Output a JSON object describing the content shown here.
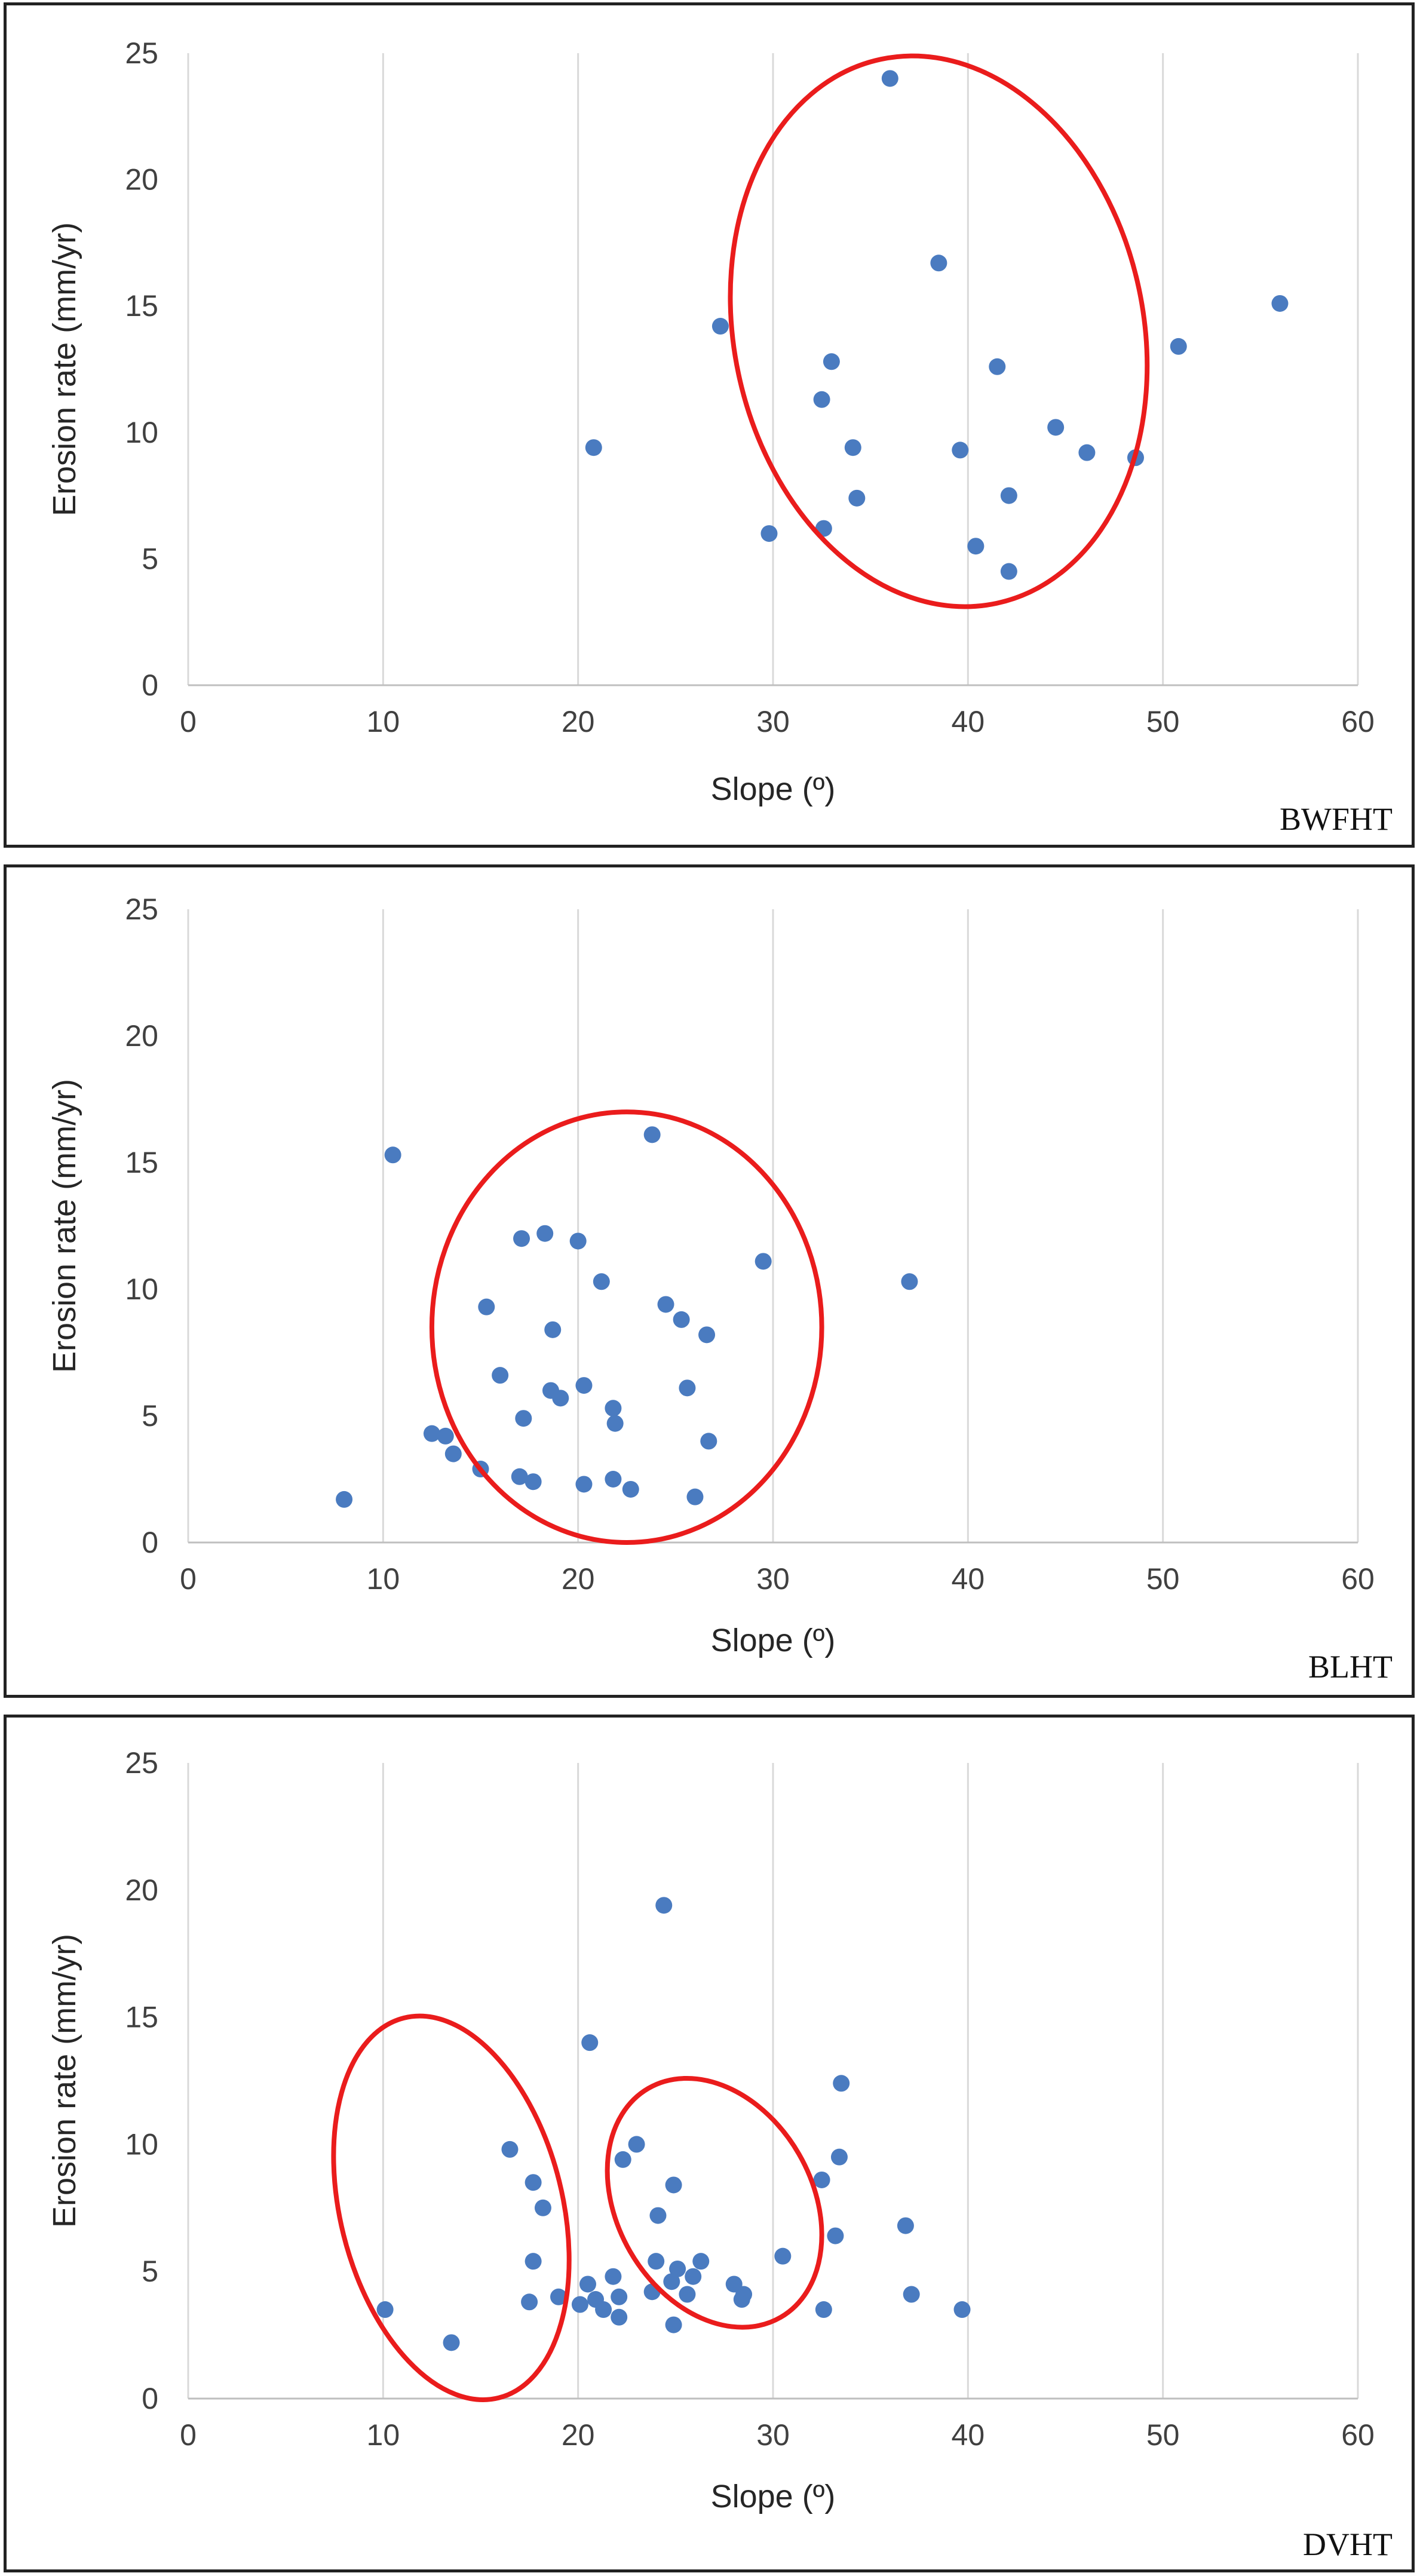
{
  "colors": {
    "marker": "#4a7bc0",
    "ellipse": "#ea1c1c",
    "grid": "#d9d9d9",
    "text": "#404040"
  },
  "chart_data": [
    {
      "type": "scatter",
      "panel_label": "BWFHT",
      "xlabel": "Slope (º)",
      "ylabel": "Erosion rate (mm/yr)",
      "xlim": [
        0,
        60
      ],
      "ylim": [
        0,
        25
      ],
      "xticks": [
        "0",
        "10",
        "20",
        "30",
        "40",
        "50",
        "60"
      ],
      "yticks": [
        "0",
        "5",
        "10",
        "15",
        "20",
        "25"
      ],
      "grid": "vertical",
      "points": [
        [
          20.8,
          9.4
        ],
        [
          27.3,
          14.2
        ],
        [
          29.8,
          6.0
        ],
        [
          32.5,
          11.3
        ],
        [
          32.6,
          6.2
        ],
        [
          33.0,
          12.8
        ],
        [
          34.1,
          9.4
        ],
        [
          34.3,
          7.4
        ],
        [
          36.0,
          24.0
        ],
        [
          38.5,
          16.7
        ],
        [
          39.6,
          9.3
        ],
        [
          40.4,
          5.5
        ],
        [
          41.5,
          12.6
        ],
        [
          42.1,
          7.5
        ],
        [
          42.1,
          4.5
        ],
        [
          44.5,
          10.2
        ],
        [
          46.1,
          9.2
        ],
        [
          48.6,
          9.0
        ],
        [
          50.8,
          13.4
        ],
        [
          56.0,
          15.1
        ]
      ],
      "ellipses": [
        {
          "cx": 38.5,
          "cy": 14.0,
          "rx": 10.5,
          "ry": 11.0,
          "rotate": -12
        }
      ]
    },
    {
      "type": "scatter",
      "panel_label": "BLHT",
      "xlabel": "Slope (º)",
      "ylabel": "Erosion rate (mm/yr)",
      "xlim": [
        0,
        60
      ],
      "ylim": [
        0,
        25
      ],
      "xticks": [
        "0",
        "10",
        "20",
        "30",
        "40",
        "50",
        "60"
      ],
      "yticks": [
        "0",
        "5",
        "10",
        "15",
        "20",
        "25"
      ],
      "grid": "vertical",
      "points": [
        [
          8.0,
          1.7
        ],
        [
          10.5,
          15.3
        ],
        [
          12.5,
          4.3
        ],
        [
          13.2,
          4.2
        ],
        [
          13.6,
          3.5
        ],
        [
          15.0,
          2.9
        ],
        [
          15.3,
          9.3
        ],
        [
          16.0,
          6.6
        ],
        [
          17.0,
          2.6
        ],
        [
          17.1,
          12.0
        ],
        [
          17.2,
          4.9
        ],
        [
          17.7,
          2.4
        ],
        [
          18.3,
          12.2
        ],
        [
          18.6,
          6.0
        ],
        [
          18.7,
          8.4
        ],
        [
          19.1,
          5.7
        ],
        [
          20.0,
          11.9
        ],
        [
          20.3,
          6.2
        ],
        [
          20.3,
          2.3
        ],
        [
          21.2,
          10.3
        ],
        [
          21.8,
          5.3
        ],
        [
          21.8,
          2.5
        ],
        [
          21.9,
          4.7
        ],
        [
          22.7,
          2.1
        ],
        [
          23.8,
          16.1
        ],
        [
          24.5,
          9.4
        ],
        [
          25.3,
          8.8
        ],
        [
          25.6,
          6.1
        ],
        [
          26.0,
          1.8
        ],
        [
          26.6,
          8.2
        ],
        [
          26.7,
          4.0
        ],
        [
          29.5,
          11.1
        ],
        [
          37.0,
          10.3
        ]
      ],
      "ellipses": [
        {
          "cx": 22.5,
          "cy": 8.5,
          "rx": 10.0,
          "ry": 8.5,
          "rotate": 0
        }
      ]
    },
    {
      "type": "scatter",
      "panel_label": "DVHT",
      "xlabel": "Slope (º)",
      "ylabel": "Erosion rate (mm/yr)",
      "xlim": [
        0,
        60
      ],
      "ylim": [
        0,
        25
      ],
      "xticks": [
        "0",
        "10",
        "20",
        "30",
        "40",
        "50",
        "60"
      ],
      "yticks": [
        "0",
        "5",
        "10",
        "15",
        "20",
        "25"
      ],
      "grid": "vertical",
      "points": [
        [
          10.1,
          3.5
        ],
        [
          13.5,
          2.2
        ],
        [
          16.5,
          9.8
        ],
        [
          17.5,
          3.8
        ],
        [
          17.7,
          5.4
        ],
        [
          17.7,
          8.5
        ],
        [
          18.2,
          7.5
        ],
        [
          19.0,
          4.0
        ],
        [
          20.1,
          3.7
        ],
        [
          20.5,
          4.5
        ],
        [
          20.6,
          14.0
        ],
        [
          20.9,
          3.9
        ],
        [
          21.3,
          3.5
        ],
        [
          21.8,
          4.8
        ],
        [
          22.1,
          3.2
        ],
        [
          22.1,
          4.0
        ],
        [
          22.3,
          9.4
        ],
        [
          23.0,
          10.0
        ],
        [
          23.8,
          4.2
        ],
        [
          24.0,
          5.4
        ],
        [
          24.1,
          7.2
        ],
        [
          24.4,
          19.4
        ],
        [
          24.8,
          4.6
        ],
        [
          24.9,
          8.4
        ],
        [
          24.9,
          2.9
        ],
        [
          25.1,
          5.1
        ],
        [
          25.6,
          4.1
        ],
        [
          25.9,
          4.8
        ],
        [
          26.3,
          5.4
        ],
        [
          28.0,
          4.5
        ],
        [
          28.4,
          3.9
        ],
        [
          28.5,
          4.1
        ],
        [
          30.5,
          5.6
        ],
        [
          32.5,
          8.6
        ],
        [
          32.6,
          3.5
        ],
        [
          33.2,
          6.4
        ],
        [
          33.4,
          9.5
        ],
        [
          33.5,
          12.4
        ],
        [
          36.8,
          6.8
        ],
        [
          37.1,
          4.1
        ],
        [
          39.7,
          3.5
        ]
      ],
      "ellipses": [
        {
          "cx": 13.5,
          "cy": 7.5,
          "rx": 5.7,
          "ry": 7.7,
          "rotate": -14
        },
        {
          "cx": 27.0,
          "cy": 7.7,
          "rx": 5.0,
          "ry": 5.2,
          "rotate": -30
        }
      ]
    }
  ]
}
